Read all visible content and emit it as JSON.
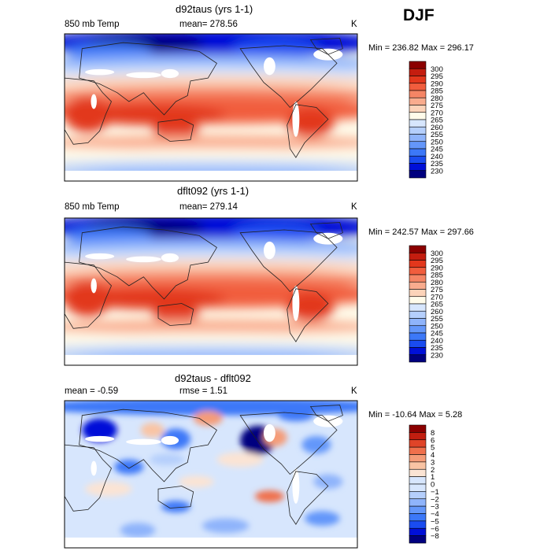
{
  "season": "DJF",
  "colors": {
    "abs": [
      "#00007f",
      "#0010d8",
      "#1a4cf0",
      "#3c78f8",
      "#6497fa",
      "#8fb4fb",
      "#b5cffc",
      "#d7e6fd",
      "#fffbea",
      "#fcd3b9",
      "#f9ac8e",
      "#f58565",
      "#f15d3d",
      "#e2371c",
      "#c41d0f",
      "#8b0000"
    ],
    "diff": [
      "#00007f",
      "#0010d8",
      "#1a4cf0",
      "#3c78f8",
      "#6497fa",
      "#8fb4fb",
      "#b5cffc",
      "#d7e6fd",
      "#fbe4d4",
      "#f9c4a4",
      "#f59c78",
      "#f0704c",
      "#e04428",
      "#c21e10",
      "#8b0000"
    ],
    "land_mask": "#ffffff",
    "coast": "#222222"
  },
  "chart_data": [
    {
      "type": "heatmap",
      "title": "d92taus (yrs 1-1)",
      "variable": "850 mb Temp",
      "stat_left": "",
      "stat_mid": "mean=  278.56",
      "units": "K",
      "min_max": "Min = 236.82  Max = 296.17",
      "min": 236.82,
      "max": 296.17,
      "mean": 278.56,
      "colorbar_levels": [
        "300",
        "295",
        "290",
        "285",
        "280",
        "275",
        "270",
        "265",
        "260",
        "255",
        "250",
        "245",
        "240",
        "235",
        "230"
      ],
      "colormap": "abs"
    },
    {
      "type": "heatmap",
      "title": "dflt092 (yrs 1-1)",
      "variable": "850 mb Temp",
      "stat_left": "",
      "stat_mid": "mean=  279.14",
      "units": "K",
      "min_max": "Min = 242.57  Max = 297.66",
      "min": 242.57,
      "max": 297.66,
      "mean": 279.14,
      "colorbar_levels": [
        "300",
        "295",
        "290",
        "285",
        "280",
        "275",
        "270",
        "265",
        "260",
        "255",
        "250",
        "245",
        "240",
        "235",
        "230"
      ],
      "colormap": "abs"
    },
    {
      "type": "heatmap",
      "title": "d92taus - dflt092",
      "variable": "",
      "stat_left": "mean =   -0.59",
      "stat_mid": "rmse =    1.51",
      "units": "K",
      "min_max": "Min = -10.64  Max =    5.28",
      "min": -10.64,
      "max": 5.28,
      "mean": -0.59,
      "rmse": 1.51,
      "colorbar_levels": [
        "8",
        "6",
        "5",
        "4",
        "3",
        "2",
        "1",
        "0",
        "−1",
        "−2",
        "−3",
        "−4",
        "−5",
        "−6",
        "−8"
      ],
      "colormap": "diff"
    }
  ]
}
